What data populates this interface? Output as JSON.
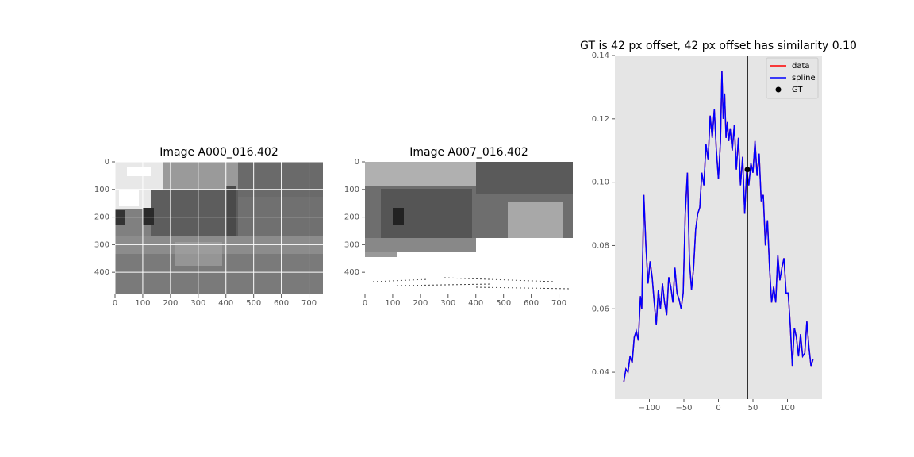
{
  "chart_data": [
    {
      "type": "image",
      "title": "Image A000_016.402",
      "xlim": [
        0,
        750
      ],
      "ylim": [
        480,
        0
      ],
      "xticks": [
        0,
        100,
        200,
        300,
        400,
        500,
        600,
        700
      ],
      "yticks": [
        0,
        100,
        200,
        300,
        400
      ],
      "grid": true
    },
    {
      "type": "image",
      "title": "Image A007_016.402",
      "xlim": [
        0,
        750
      ],
      "ylim": [
        480,
        0
      ],
      "xticks": [
        0,
        100,
        200,
        300,
        400,
        500,
        600,
        700
      ],
      "yticks": [
        0,
        100,
        200,
        300,
        400
      ],
      "grid": false
    },
    {
      "type": "line",
      "title": "GT is 42 px offset, 42 px offset has similarity 0.10",
      "xlim": [
        -150,
        150
      ],
      "ylim": [
        0.0315,
        0.14
      ],
      "xticks": [
        {
          "value": -100,
          "label": "−100"
        },
        {
          "value": -50,
          "label": "−50"
        },
        0,
        50,
        100
      ],
      "yticks": [
        {
          "value": 0.04,
          "label": "0.04"
        },
        {
          "value": 0.06,
          "label": "0.06"
        },
        {
          "value": 0.08,
          "label": "0.08"
        },
        {
          "value": 0.1,
          "label": "0.10"
        },
        {
          "value": 0.12,
          "label": "0.12"
        },
        {
          "value": 0.14,
          "label": "0.14"
        }
      ],
      "legend": "upper right",
      "x": [
        -137,
        -134,
        -131,
        -128,
        -125,
        -122,
        -119,
        -116,
        -113,
        -111,
        -108,
        -105,
        -102,
        -99,
        -96,
        -93,
        -90,
        -87,
        -84,
        -81,
        -78,
        -75,
        -72,
        -69,
        -66,
        -63,
        -60,
        -57,
        -54,
        -51,
        -48,
        -45,
        -42,
        -39,
        -36,
        -33,
        -30,
        -27,
        -24,
        -21,
        -18,
        -15,
        -12,
        -9,
        -6,
        -3,
        0,
        3,
        5,
        7,
        9,
        11,
        13,
        15,
        17,
        20,
        23,
        26,
        29,
        32,
        35,
        38,
        41,
        44,
        47,
        50,
        53,
        56,
        59,
        62,
        65,
        68,
        71,
        74,
        77,
        80,
        83,
        86,
        89,
        92,
        95,
        98,
        101,
        104,
        107,
        110,
        113,
        116,
        119,
        122,
        125,
        128,
        131,
        134,
        137
      ],
      "series": [
        {
          "name": "data",
          "color": "#ff0000",
          "values": [
            0.037,
            0.041,
            0.04,
            0.045,
            0.043,
            0.051,
            0.053,
            0.05,
            0.064,
            0.06,
            0.096,
            0.08,
            0.068,
            0.075,
            0.07,
            0.062,
            0.055,
            0.066,
            0.06,
            0.068,
            0.062,
            0.058,
            0.07,
            0.067,
            0.062,
            0.073,
            0.065,
            0.063,
            0.06,
            0.065,
            0.09,
            0.103,
            0.075,
            0.066,
            0.073,
            0.085,
            0.09,
            0.092,
            0.103,
            0.099,
            0.112,
            0.107,
            0.121,
            0.114,
            0.123,
            0.11,
            0.101,
            0.113,
            0.135,
            0.12,
            0.128,
            0.114,
            0.119,
            0.113,
            0.117,
            0.11,
            0.118,
            0.104,
            0.114,
            0.099,
            0.108,
            0.09,
            0.104,
            0.099,
            0.106,
            0.103,
            0.113,
            0.102,
            0.109,
            0.094,
            0.096,
            0.08,
            0.088,
            0.073,
            0.062,
            0.067,
            0.062,
            0.077,
            0.069,
            0.073,
            0.076,
            0.065,
            0.065,
            0.055,
            0.042,
            0.054,
            0.051,
            0.045,
            0.052,
            0.045,
            0.046,
            0.056,
            0.048,
            0.042,
            0.044
          ]
        },
        {
          "name": "spline",
          "color": "#0000ff",
          "values": [
            0.037,
            0.041,
            0.04,
            0.045,
            0.043,
            0.051,
            0.053,
            0.05,
            0.064,
            0.06,
            0.096,
            0.08,
            0.068,
            0.075,
            0.07,
            0.062,
            0.055,
            0.066,
            0.06,
            0.068,
            0.062,
            0.058,
            0.07,
            0.067,
            0.062,
            0.073,
            0.065,
            0.063,
            0.06,
            0.065,
            0.09,
            0.103,
            0.075,
            0.066,
            0.073,
            0.085,
            0.09,
            0.092,
            0.103,
            0.099,
            0.112,
            0.107,
            0.121,
            0.114,
            0.123,
            0.11,
            0.101,
            0.113,
            0.135,
            0.12,
            0.128,
            0.114,
            0.119,
            0.113,
            0.117,
            0.11,
            0.118,
            0.104,
            0.114,
            0.099,
            0.108,
            0.09,
            0.104,
            0.099,
            0.106,
            0.103,
            0.113,
            0.102,
            0.109,
            0.094,
            0.096,
            0.08,
            0.088,
            0.073,
            0.062,
            0.067,
            0.062,
            0.077,
            0.069,
            0.073,
            0.076,
            0.065,
            0.065,
            0.055,
            0.042,
            0.054,
            0.051,
            0.045,
            0.052,
            0.045,
            0.046,
            0.056,
            0.048,
            0.042,
            0.044
          ]
        }
      ],
      "gt": {
        "name": "GT",
        "x": 42,
        "y": 0.104,
        "color": "#000000"
      }
    }
  ]
}
